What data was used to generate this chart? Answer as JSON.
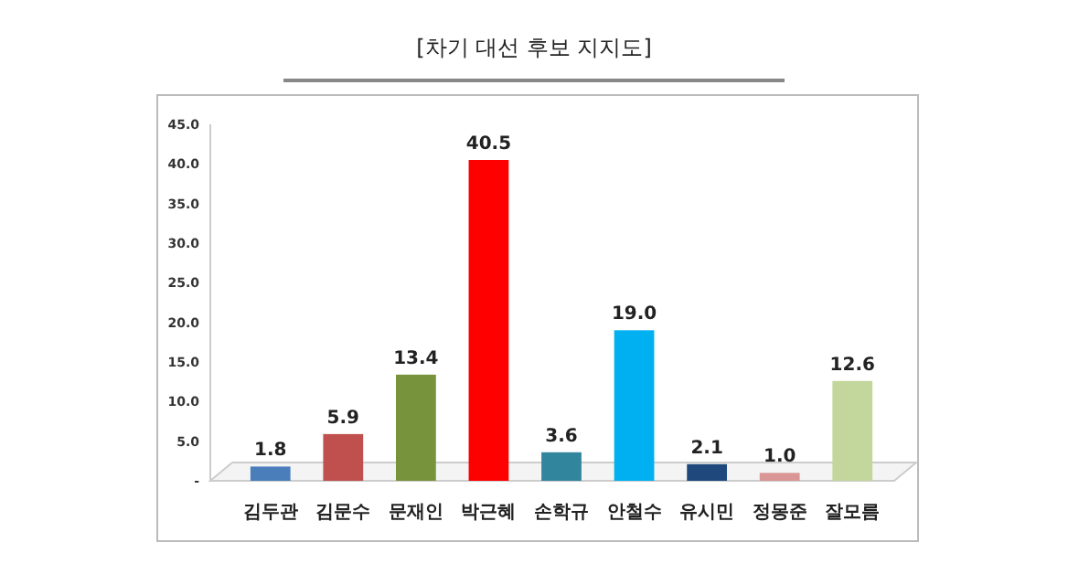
{
  "chart_data": {
    "type": "bar",
    "title": "[차기 대선 후보 지지도]",
    "categories": [
      "김두관",
      "김문수",
      "문재인",
      "박근혜",
      "손학규",
      "안철수",
      "유시민",
      "정몽준",
      "잘모름"
    ],
    "values": [
      1.8,
      5.9,
      13.4,
      40.5,
      3.6,
      19.0,
      2.1,
      1.0,
      12.6
    ],
    "value_labels": [
      "1.8",
      "5.9",
      "13.4",
      "40.5",
      "3.6",
      "19.0",
      "2.1",
      "1.0",
      "12.6"
    ],
    "colors": [
      "#4a7ebb",
      "#c0504d",
      "#77933c",
      "#ff0000",
      "#31859c",
      "#00b0f0",
      "#1f497d",
      "#d99694",
      "#c3d69b"
    ],
    "ylim": [
      0,
      45
    ],
    "yticks": [
      {
        "value": 0,
        "label": "-"
      },
      {
        "value": 5,
        "label": "5.0"
      },
      {
        "value": 10,
        "label": "10.0"
      },
      {
        "value": 15,
        "label": "15.0"
      },
      {
        "value": 20,
        "label": "20.0"
      },
      {
        "value": 25,
        "label": "25.0"
      },
      {
        "value": 30,
        "label": "30.0"
      },
      {
        "value": 35,
        "label": "35.0"
      },
      {
        "value": 40,
        "label": "40.0"
      },
      {
        "value": 45,
        "label": "45.0"
      }
    ],
    "grid": false
  }
}
